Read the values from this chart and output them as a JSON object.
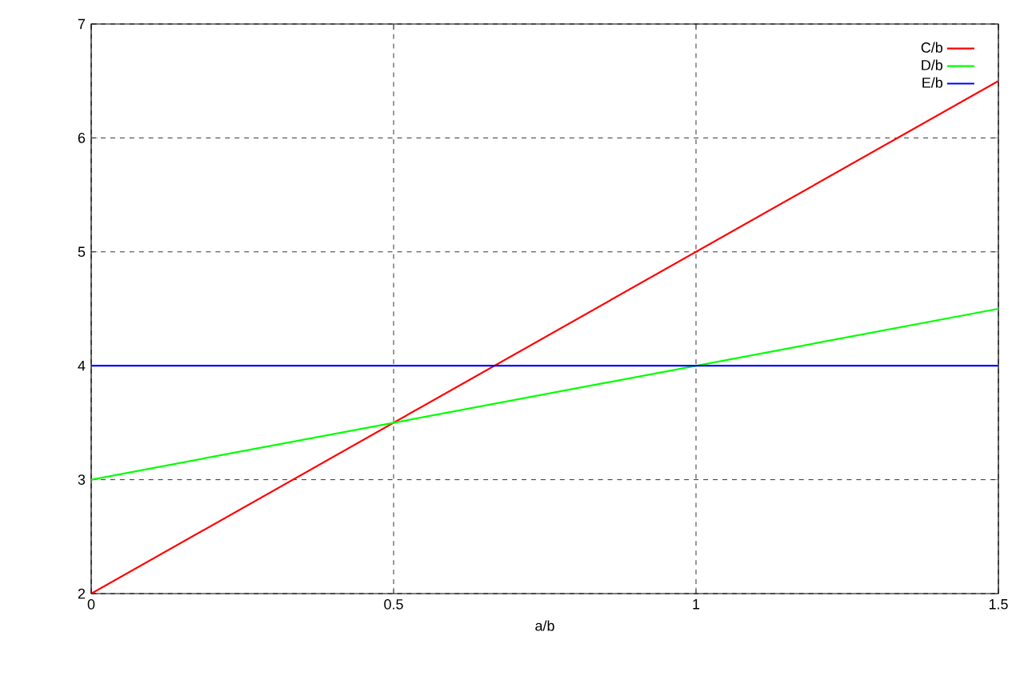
{
  "chart_data": {
    "type": "line",
    "xlabel": "a/b",
    "x": [
      0,
      1.5
    ],
    "series": [
      {
        "name": "C/b",
        "color": "#ff0000",
        "values": [
          2,
          6.5
        ]
      },
      {
        "name": "D/b",
        "color": "#00ff00",
        "values": [
          3,
          4.5
        ]
      },
      {
        "name": "E/b",
        "color": "#0000ff",
        "values": [
          4,
          4
        ]
      }
    ],
    "xlim": [
      0,
      1.5
    ],
    "ylim": [
      2,
      7
    ],
    "xticks": [
      0,
      0.5,
      1,
      1.5
    ],
    "yticks": [
      2,
      3,
      4,
      5,
      6,
      7
    ],
    "grid": true,
    "legend": "top right",
    "marker": "none",
    "line_style": "solid"
  }
}
